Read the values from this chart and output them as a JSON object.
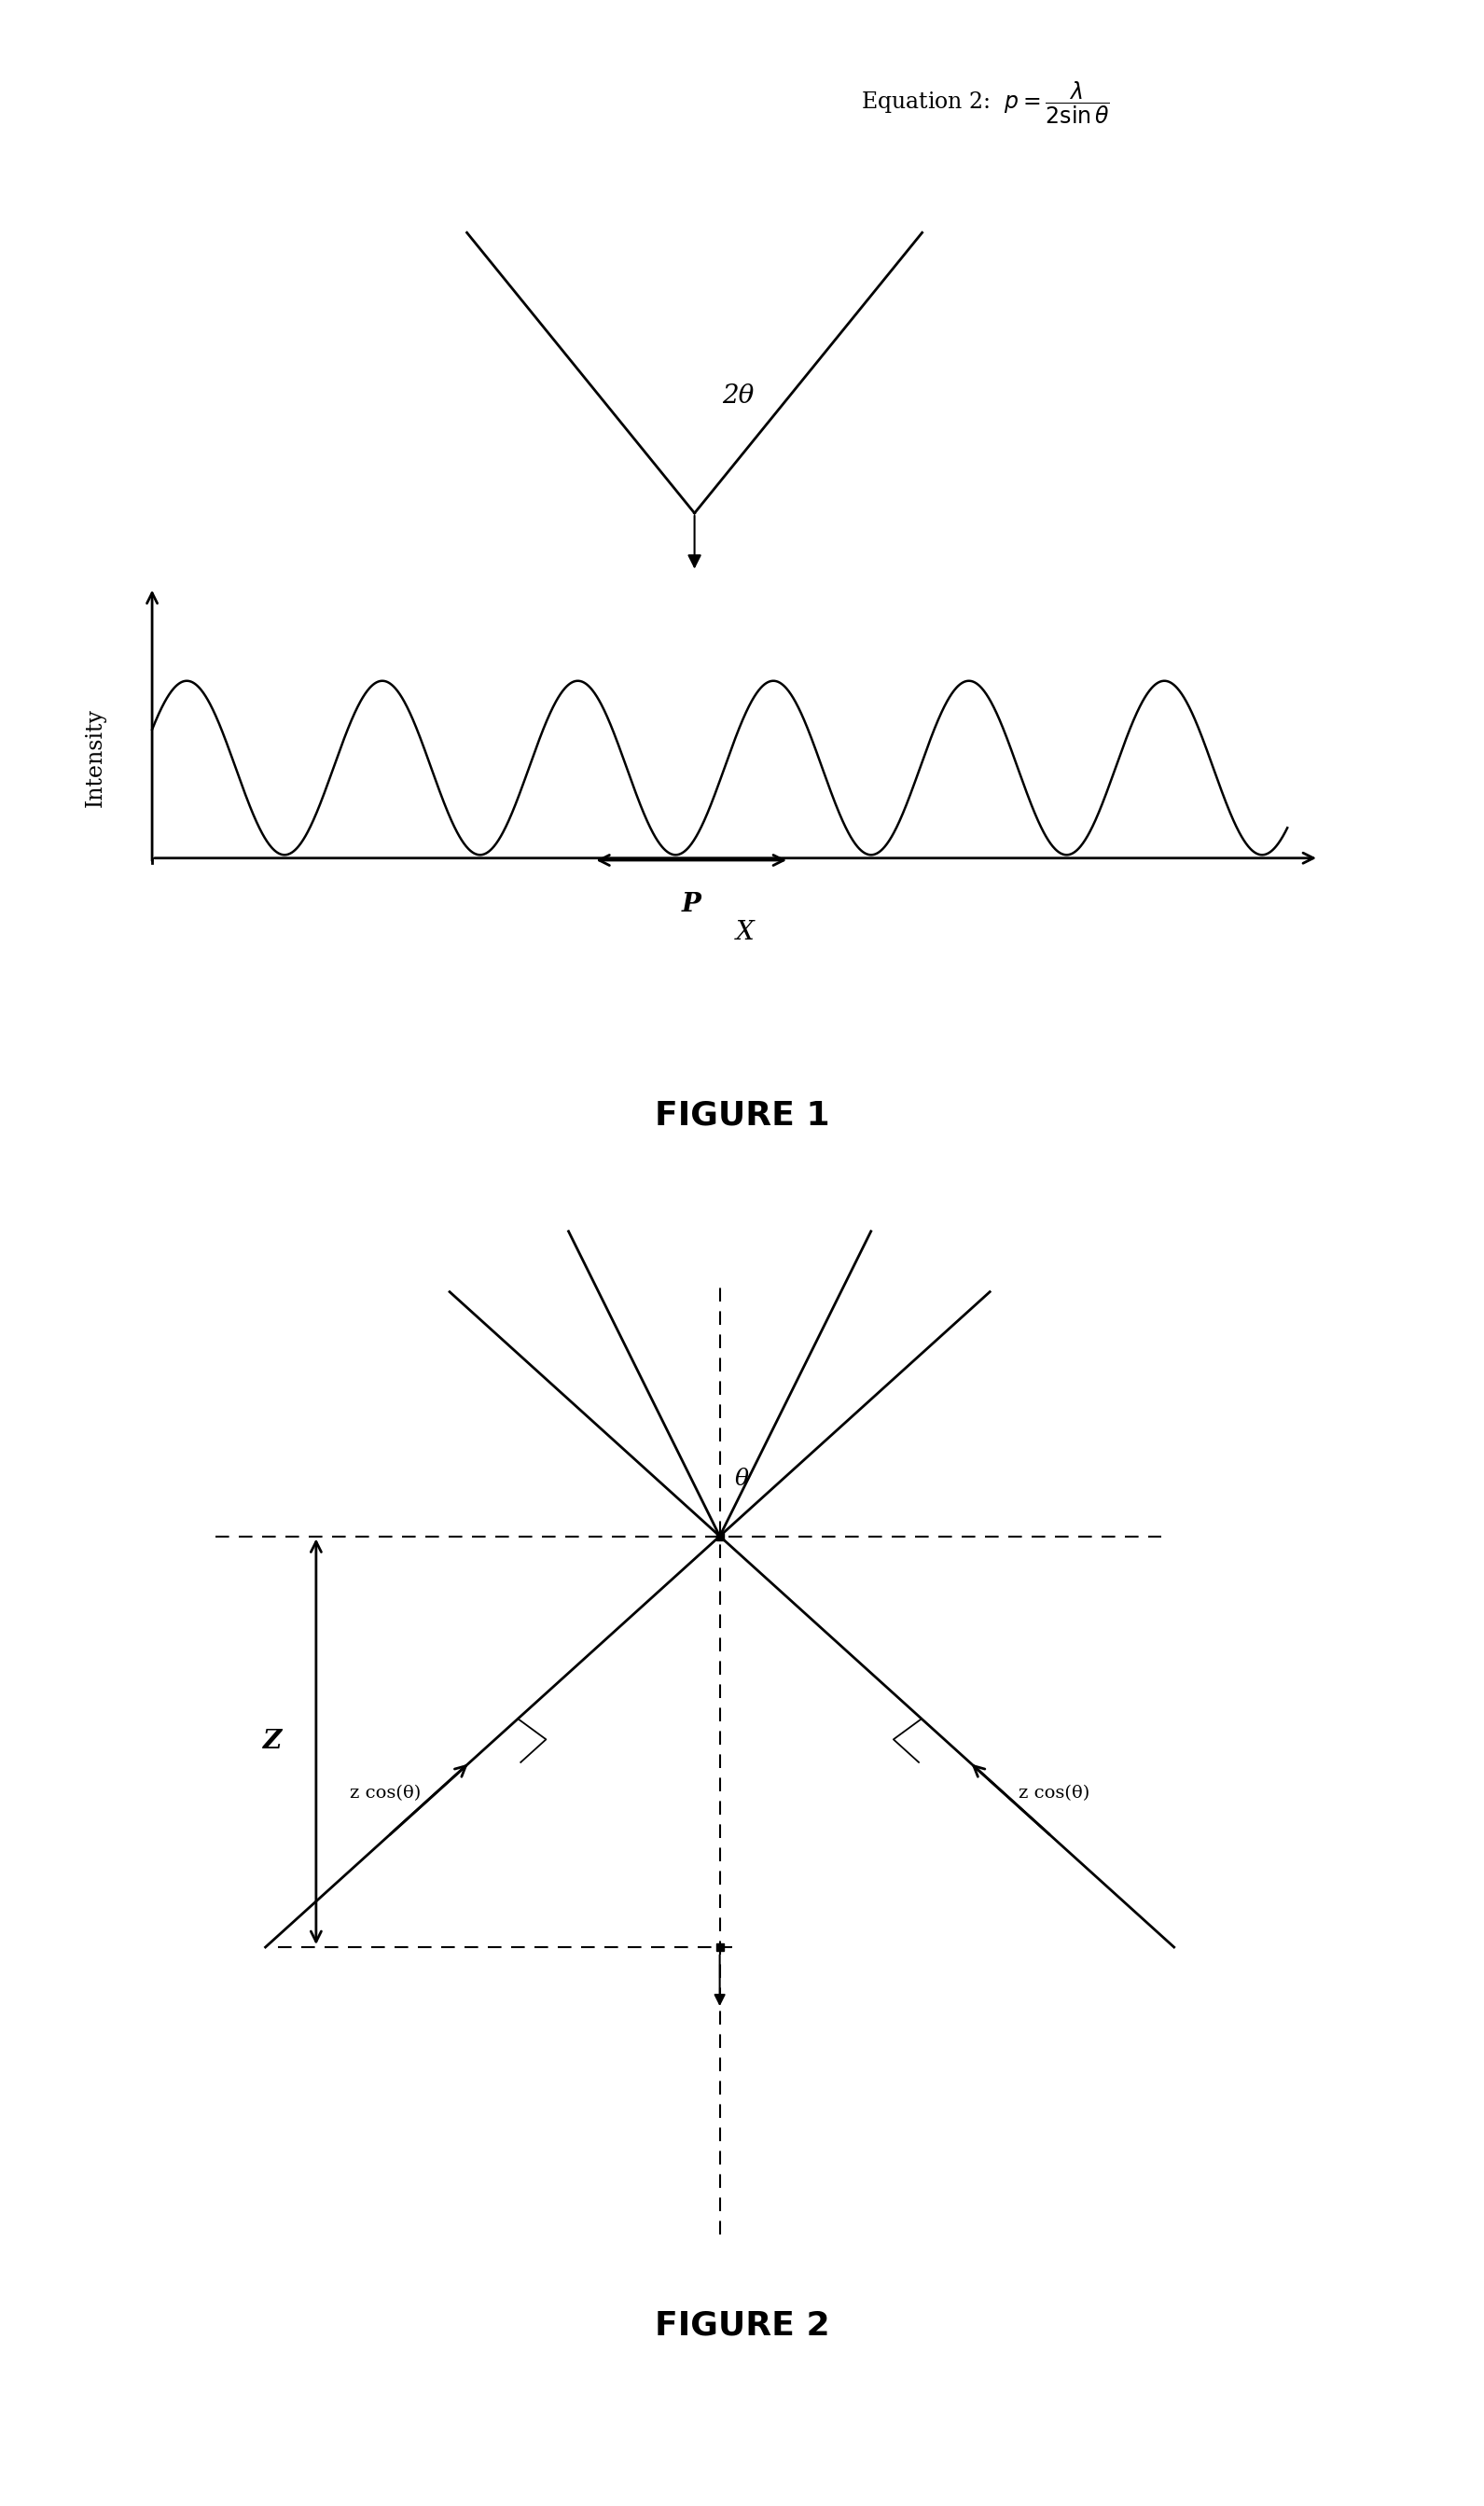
{
  "fig_width": 15.91,
  "fig_height": 26.86,
  "bg_color": "#ffffff",
  "fig1_label": "FIGURE 1",
  "fig2_label": "FIGURE 2",
  "intensity_label": "Intensity",
  "x_label": "X",
  "p_label": "P",
  "two_theta_label": "2θ",
  "theta_label": "θ",
  "z_label": "Z",
  "zcos_left_label": "z cos(θ)",
  "zcos_right_label": "z cos(θ)"
}
